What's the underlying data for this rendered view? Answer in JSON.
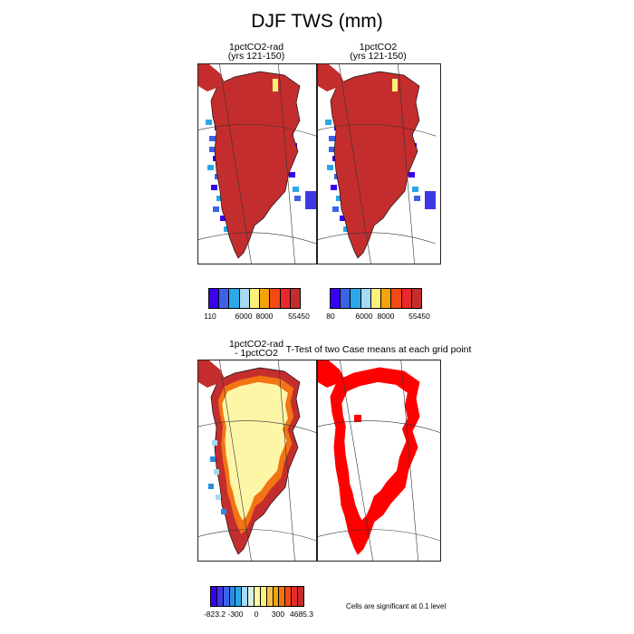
{
  "title": "DJF TWS (mm)",
  "panels": {
    "p1": {
      "line1": "1pctCO2-rad",
      "line2": "(yrs 121-150)"
    },
    "p2": {
      "line1": "1pctCO2",
      "line2": "(yrs 121-150)"
    },
    "p3": {
      "line1": "1pctCO2-rad",
      "line2": "- 1pctCO2"
    },
    "p4": {
      "heading": "T-Test of two Case means at each grid point"
    }
  },
  "colorbars": {
    "abs_colors": [
      "#3a00f0",
      "#3c63e6",
      "#2aa8e8",
      "#a6d9f2",
      "#fdf07a",
      "#f5a30d",
      "#f34a14",
      "#e8282a",
      "#c42d2d"
    ],
    "diff_colors": [
      "#3a00f0",
      "#3c38e8",
      "#3c63e6",
      "#2a8be8",
      "#2aa8e8",
      "#a6d9f2",
      "#d9efe4",
      "#fdf6a6",
      "#fdf07a",
      "#f7c04a",
      "#f5a30d",
      "#f37414",
      "#f34a14",
      "#e8282a",
      "#c42d2d"
    ],
    "cb1_ticks": [
      "110",
      "6000",
      "8000",
      "55450"
    ],
    "cb2_ticks": [
      "80",
      "6000",
      "8000",
      "55450"
    ],
    "cb3_ticks": [
      "-823.2",
      "-300",
      "0",
      "300",
      "4685.3"
    ]
  },
  "note": "Cells are significant at 0.1 level",
  "chart_data": [
    {
      "type": "heatmap",
      "title": "1pctCO2-rad (yrs 121-150)",
      "region": "Greenland",
      "field": "DJF TWS (mm)",
      "colorbar_ticks": [
        110,
        6000,
        8000,
        55450
      ],
      "dominant_value_range": [
        8000,
        55450
      ]
    },
    {
      "type": "heatmap",
      "title": "1pctCO2 (yrs 121-150)",
      "region": "Greenland",
      "field": "DJF TWS (mm)",
      "colorbar_ticks": [
        80,
        6000,
        8000,
        55450
      ],
      "dominant_value_range": [
        8000,
        55450
      ]
    },
    {
      "type": "heatmap",
      "title": "1pctCO2-rad - 1pctCO2",
      "region": "Greenland",
      "field": "DJF TWS (mm)",
      "colorbar_ticks": [
        -823.2,
        -300,
        0,
        300,
        4685.3
      ],
      "pattern": "interior near 0 (pale yellow), margins strongly positive (orange/red), scattered negative (blue) cells on west coast"
    },
    {
      "type": "heatmap",
      "title": "T-Test of two Case means at each grid point",
      "region": "Greenland",
      "significance_level": 0.1,
      "significant_color": "#ff0000",
      "pattern": "significant cells form a band around the ice-sheet margin"
    }
  ]
}
